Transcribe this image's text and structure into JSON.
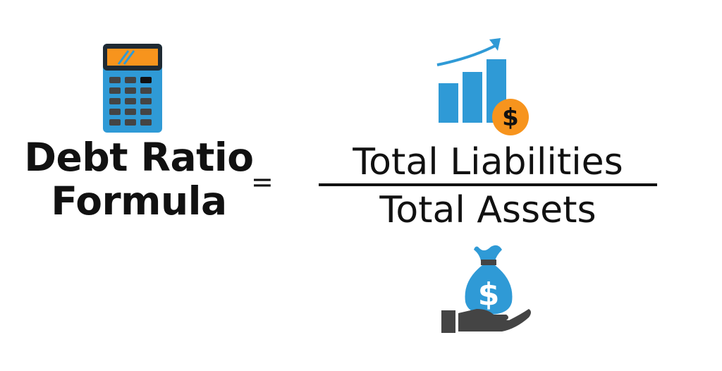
{
  "formula": {
    "title_line1": "Debt Ratio",
    "title_line2": "Formula",
    "equals_sign": "=",
    "numerator": "Total Liabilities",
    "denominator": "Total Assets"
  },
  "icons": {
    "calculator": "calculator-icon",
    "growth_chart": "growth-chart-icon",
    "dollar_coin": "dollar-coin-icon",
    "money_bag_hand": "money-bag-in-hand-icon",
    "dollar_symbol": "$"
  },
  "colors": {
    "blue": "#2f9ad6",
    "orange": "#f7941d",
    "dark_gray": "#444444",
    "text": "#111111"
  }
}
